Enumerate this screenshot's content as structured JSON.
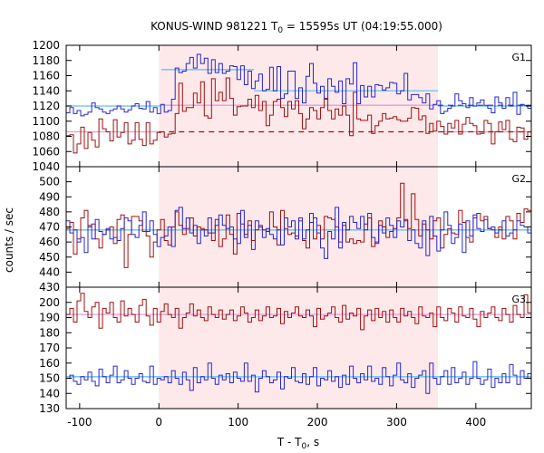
{
  "chart_data": {
    "type": "line",
    "title_prefix": "KONUS-WIND 981221 T",
    "title_sub": "0",
    "title_suffix": " = 15595s UT (04:19:55.000)",
    "xlabel_prefix": "T - T",
    "xlabel_sub": "0",
    "xlabel_suffix": ", s",
    "ylabel": "counts / sec",
    "xlim": [
      -117,
      470
    ],
    "x_ticks": [
      -100,
      0,
      100,
      200,
      300,
      400
    ],
    "x_tick_labels": [
      "-100",
      "0",
      "100",
      "200",
      "300",
      "400"
    ],
    "highlight_interval": [
      0,
      352
    ],
    "highlight_color": "#fde8ea",
    "colors": {
      "red": "#a01010",
      "blue": "#2828c8",
      "cyan": "#7ec8f0",
      "pink": "#e79ad8",
      "redDash": "#a01010"
    },
    "panels": [
      {
        "label": "G1",
        "ylim": [
          1040,
          1200
        ],
        "y_ticks": [
          1040,
          1060,
          1080,
          1100,
          1120,
          1140,
          1160,
          1180,
          1200
        ],
        "blue": [
          1111,
          1118,
          1110,
          1114,
          1107,
          1109,
          1112,
          1124,
          1118,
          1116,
          1112,
          1110,
          1114,
          1116,
          1120,
          1116,
          1112,
          1115,
          1120,
          1123,
          1117,
          1116,
          1126,
          1112,
          1118,
          1110,
          1122,
          1112,
          1114,
          1129,
          1170,
          1164,
          1166,
          1176,
          1184,
          1170,
          1188,
          1176,
          1183,
          1163,
          1181,
          1164,
          1176,
          1163,
          1166,
          1173,
          1172,
          1155,
          1173,
          1148,
          1166,
          1143,
          1153,
          1162,
          1140,
          1142,
          1171,
          1140,
          1172,
          1130,
          1136,
          1166,
          1166,
          1130,
          1144,
          1124,
          1159,
          1176,
          1150,
          1137,
          1146,
          1129,
          1156,
          1146,
          1138,
          1153,
          1123,
          1156,
          1149,
          1177,
          1123,
          1147,
          1132,
          1146,
          1132,
          1148,
          1147,
          1141,
          1144,
          1151,
          1150,
          1136,
          1140,
          1163,
          1128,
          1135,
          1135,
          1131,
          1124,
          1136,
          1116,
          1122,
          1127,
          1110,
          1113,
          1117,
          1120,
          1136,
          1127,
          1123,
          1118,
          1131,
          1120,
          1124,
          1128,
          1121,
          1117,
          1111,
          1132,
          1124,
          1117,
          1131,
          1120,
          1138,
          1109,
          1122,
          1121,
          1117
        ],
        "red": [
          1081,
          1082,
          1058,
          1070,
          1092,
          1064,
          1085,
          1075,
          1066,
          1103,
          1090,
          1086,
          1074,
          1102,
          1079,
          1085,
          1098,
          1070,
          1075,
          1098,
          1076,
          1068,
          1098,
          1070,
          1075,
          1085,
          1086,
          1079,
          1083,
          1084,
          1110,
          1150,
          1113,
          1118,
          1118,
          1137,
          1124,
          1152,
          1107,
          1104,
          1156,
          1127,
          1138,
          1127,
          1157,
          1130,
          1108,
          1119,
          1120,
          1120,
          1129,
          1118,
          1134,
          1114,
          1126,
          1094,
          1108,
          1126,
          1129,
          1118,
          1106,
          1126,
          1116,
          1127,
          1110,
          1090,
          1103,
          1118,
          1114,
          1103,
          1118,
          1130,
          1114,
          1103,
          1116,
          1108,
          1120,
          1108,
          1081,
          1138,
          1103,
          1101,
          1101,
          1108,
          1084,
          1094,
          1100,
          1110,
          1103,
          1104,
          1106,
          1102,
          1100,
          1100,
          1104,
          1118,
          1117,
          1102,
          1107,
          1084,
          1097,
          1087,
          1100,
          1093,
          1083,
          1097,
          1091,
          1101,
          1083,
          1096,
          1105,
          1097,
          1094,
          1083,
          1084,
          1101,
          1097,
          1070,
          1086,
          1099,
          1089,
          1101,
          1076,
          1073,
          1092,
          1091,
          1076,
          1086
        ],
        "cyan_segments": [
          {
            "x": [
              -117,
              3
            ],
            "y": 1120
          },
          {
            "x": [
              3,
              120
            ],
            "y": 1168
          },
          {
            "x": [
              120,
              352
            ],
            "y": 1140
          },
          {
            "x": [
              352,
              470
            ],
            "y": 1120
          }
        ],
        "pink_segments": [
          {
            "x": [
              -117,
              3
            ],
            "y": 1086
          },
          {
            "x": [
              3,
              352
            ],
            "y": 1121
          },
          {
            "x": [
              352,
              470
            ],
            "y": 1086
          }
        ],
        "red_dashed": 1086,
        "red_dashed_x": [
          0,
          470
        ],
        "blue_dashed": 1121,
        "blue_dashed_x": [
          352,
          470
        ]
      },
      {
        "label": "G2",
        "ylim": [
          430,
          510
        ],
        "y_ticks": [
          430,
          440,
          450,
          460,
          470,
          480,
          490,
          500
        ],
        "blue": [
          474,
          466,
          468,
          460,
          463,
          453,
          471,
          462,
          475,
          467,
          465,
          469,
          462,
          463,
          461,
          469,
          476,
          474,
          465,
          463,
          471,
          480,
          467,
          474,
          465,
          457,
          463,
          464,
          470,
          457,
          481,
          483,
          469,
          476,
          466,
          471,
          459,
          468,
          464,
          476,
          466,
          471,
          478,
          471,
          469,
          470,
          462,
          459,
          481,
          463,
          471,
          455,
          474,
          470,
          463,
          469,
          465,
          462,
          468,
          458,
          476,
          470,
          474,
          462,
          476,
          462,
          468,
          473,
          476,
          466,
          456,
          449,
          467,
          462,
          483,
          456,
          473,
          468,
          477,
          473,
          469,
          477,
          468,
          479,
          463,
          459,
          471,
          466,
          476,
          471,
          463,
          474,
          470,
          475,
          461,
          468,
          459,
          456,
          474,
          451,
          477,
          464,
          454,
          468,
          480,
          471,
          459,
          463,
          472,
          453,
          474,
          464,
          478,
          469,
          467,
          475,
          469,
          470,
          466,
          468,
          474,
          464,
          466,
          468,
          474,
          471,
          470,
          466
        ],
        "red": [
          469,
          473,
          452,
          462,
          476,
          481,
          470,
          472,
          462,
          456,
          465,
          468,
          470,
          459,
          475,
          478,
          443,
          465,
          477,
          477,
          474,
          467,
          464,
          450,
          460,
          468,
          475,
          461,
          458,
          470,
          480,
          471,
          465,
          469,
          476,
          464,
          470,
          469,
          468,
          466,
          461,
          475,
          457,
          462,
          478,
          465,
          452,
          479,
          472,
          465,
          474,
          461,
          468,
          471,
          468,
          467,
          480,
          470,
          458,
          481,
          469,
          465,
          466,
          464,
          474,
          461,
          456,
          479,
          462,
          471,
          462,
          477,
          476,
          475,
          470,
          460,
          471,
          460,
          462,
          459,
          461,
          460,
          472,
          476,
          457,
          460,
          474,
          470,
          463,
          467,
          469,
          476,
          499,
          474,
          469,
          492,
          475,
          464,
          472,
          468,
          462,
          474,
          476,
          456,
          465,
          469,
          466,
          465,
          481,
          473,
          463,
          460,
          476,
          479,
          474,
          477,
          469,
          468,
          463,
          470,
          462,
          477,
          474,
          462,
          479,
          473,
          482,
          481
        ],
        "cyan_segments": [
          {
            "x": [
              -117,
              470
            ],
            "y": 468
          }
        ]
      },
      {
        "label": "G3",
        "ylim": [
          130,
          210
        ],
        "y_ticks": [
          130,
          140,
          150,
          160,
          170,
          180,
          190,
          200
        ],
        "blue": [
          150,
          152,
          148,
          146,
          151,
          149,
          154,
          148,
          145,
          156,
          151,
          147,
          152,
          158,
          147,
          149,
          155,
          150,
          146,
          150,
          153,
          148,
          147,
          158,
          146,
          150,
          149,
          151,
          147,
          155,
          150,
          146,
          154,
          149,
          142,
          157,
          147,
          151,
          149,
          160,
          150,
          146,
          152,
          149,
          153,
          147,
          154,
          150,
          148,
          160,
          148,
          152,
          141,
          150,
          155,
          151,
          147,
          149,
          154,
          143,
          151,
          150,
          157,
          148,
          147,
          153,
          146,
          151,
          157,
          145,
          150,
          149,
          155,
          148,
          151,
          144,
          152,
          146,
          158,
          150,
          147,
          153,
          149,
          158,
          148,
          150,
          146,
          157,
          151,
          145,
          152,
          160,
          149,
          147,
          153,
          144,
          150,
          152,
          155,
          140,
          160,
          150,
          146,
          151,
          155,
          146,
          157,
          147,
          150,
          154,
          146,
          150,
          161,
          150,
          146,
          149,
          156,
          144,
          150,
          147,
          153,
          147,
          159,
          152,
          146,
          155,
          150,
          153
        ],
        "red": [
          192,
          196,
          187,
          201,
          206,
          194,
          190,
          197,
          200,
          183,
          196,
          193,
          200,
          190,
          187,
          201,
          191,
          196,
          192,
          187,
          198,
          202,
          191,
          185,
          196,
          187,
          194,
          199,
          192,
          190,
          196,
          183,
          190,
          193,
          199,
          191,
          195,
          190,
          188,
          197,
          192,
          190,
          195,
          189,
          192,
          195,
          188,
          191,
          197,
          193,
          187,
          190,
          195,
          188,
          191,
          197,
          190,
          191,
          196,
          186,
          194,
          190,
          193,
          197,
          191,
          190,
          195,
          191,
          184,
          196,
          189,
          191,
          193,
          197,
          190,
          187,
          198,
          189,
          193,
          191,
          196,
          182,
          191,
          195,
          188,
          196,
          190,
          194,
          187,
          195,
          190,
          187,
          196,
          191,
          194,
          190,
          186,
          197,
          191,
          190,
          193,
          184,
          197,
          190,
          188,
          196,
          193,
          187,
          197,
          191,
          190,
          196,
          189,
          184,
          194,
          190,
          193,
          197,
          190,
          188,
          196,
          192,
          187,
          198,
          192,
          190,
          205,
          193
        ],
        "cyan_segments": [
          {
            "x": [
              -117,
              470
            ],
            "y": 151
          }
        ],
        "pink_segments": [
          {
            "x": [
              -117,
              470
            ],
            "y": 192
          }
        ]
      }
    ]
  }
}
